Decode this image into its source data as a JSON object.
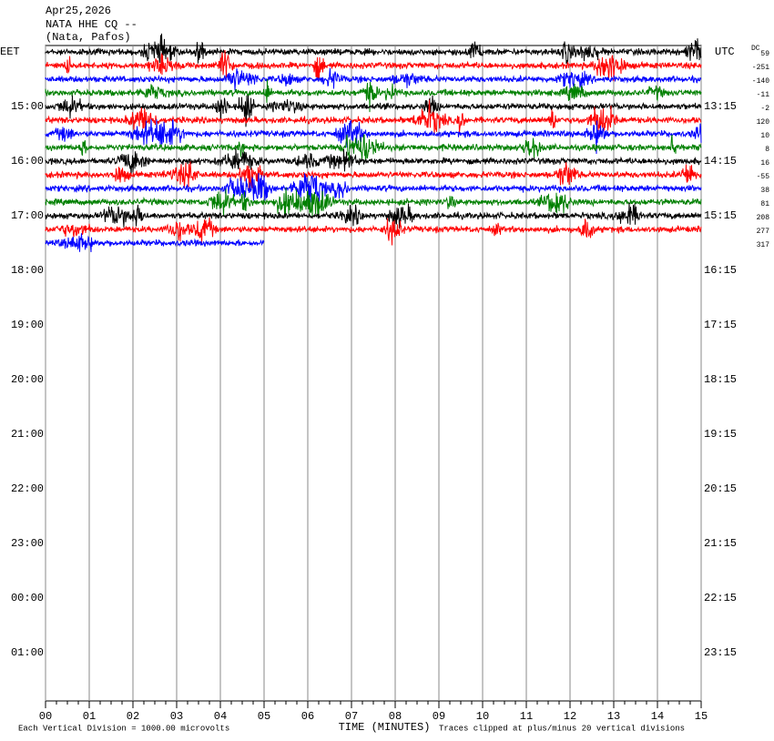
{
  "chart_data": {
    "type": "helicorder",
    "header": [
      "Apr25,2026",
      "NATA HHE CQ --",
      "(Nata, Pafos)"
    ],
    "left_label": "EET",
    "right_label": "UTC",
    "offset_label": "DC",
    "xlabel": "TIME (MINUTES)",
    "scale_note": "Each Vertical Division = 1000.00 microvolts",
    "clip_note": "Traces clipped at plus/minus 20 vertical divisions",
    "xlim": [
      0,
      15
    ],
    "xticks": [
      {
        "value": 0,
        "label": "00"
      },
      {
        "value": 1,
        "label": "01"
      },
      {
        "value": 2,
        "label": "02"
      },
      {
        "value": 3,
        "label": "03"
      },
      {
        "value": 4,
        "label": "04"
      },
      {
        "value": 5,
        "label": "05"
      },
      {
        "value": 6,
        "label": "06"
      },
      {
        "value": 7,
        "label": "07"
      },
      {
        "value": 8,
        "label": "08"
      },
      {
        "value": 9,
        "label": "09"
      },
      {
        "value": 10,
        "label": "10"
      },
      {
        "value": 11,
        "label": "11"
      },
      {
        "value": 12,
        "label": "12"
      },
      {
        "value": 13,
        "label": "13"
      },
      {
        "value": 14,
        "label": "14"
      },
      {
        "value": 15,
        "label": "15"
      }
    ],
    "ylim": [
      0,
      48
    ],
    "yticks": [
      {
        "value": 4,
        "label": "15:00"
      },
      {
        "value": 8,
        "label": "16:00"
      },
      {
        "value": 12,
        "label": "17:00"
      },
      {
        "value": 16,
        "label": "18:00"
      },
      {
        "value": 20,
        "label": "19:00"
      },
      {
        "value": 24,
        "label": "20:00"
      },
      {
        "value": 28,
        "label": "21:00"
      },
      {
        "value": 32,
        "label": "22:00"
      },
      {
        "value": 36,
        "label": "23:00"
      },
      {
        "value": 40,
        "label": "00:00"
      },
      {
        "value": 44,
        "label": "01:00"
      }
    ],
    "y2ticks": [
      {
        "value": 4,
        "label": "13:15"
      },
      {
        "value": 8,
        "label": "14:15"
      },
      {
        "value": 12,
        "label": "15:15"
      },
      {
        "value": 16,
        "label": "16:15"
      },
      {
        "value": 20,
        "label": "17:15"
      },
      {
        "value": 24,
        "label": "18:15"
      },
      {
        "value": 28,
        "label": "19:15"
      },
      {
        "value": 32,
        "label": "20:15"
      },
      {
        "value": 36,
        "label": "21:15"
      },
      {
        "value": 40,
        "label": "22:15"
      },
      {
        "value": 44,
        "label": "23:15"
      }
    ],
    "traces": [
      {
        "dc": 59,
        "color": "#000000"
      },
      {
        "dc": -251,
        "color": "#ff0000"
      },
      {
        "dc": -140,
        "color": "#0000ff"
      },
      {
        "dc": -11,
        "color": "#008000"
      },
      {
        "dc": -2,
        "color": "#000000"
      },
      {
        "dc": 120,
        "color": "#ff0000"
      },
      {
        "dc": 10,
        "color": "#0000ff"
      },
      {
        "dc": 8,
        "color": "#008000"
      },
      {
        "dc": 16,
        "color": "#000000"
      },
      {
        "dc": -55,
        "color": "#ff0000"
      },
      {
        "dc": 38,
        "color": "#0000ff"
      },
      {
        "dc": 81,
        "color": "#008000"
      },
      {
        "dc": 208,
        "color": "#000000"
      },
      {
        "dc": 277,
        "color": "#ff0000"
      },
      {
        "dc": 317,
        "color": "#0000ff",
        "end": 5
      }
    ]
  }
}
